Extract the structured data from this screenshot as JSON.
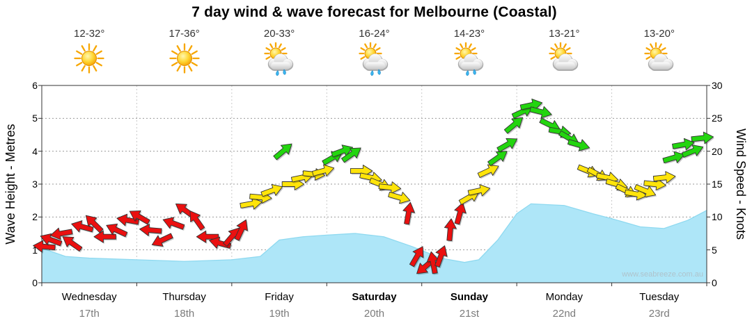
{
  "title": "7 day wind & wave forecast for Melbourne (Coastal)",
  "watermark": "www.seabreeze.com.au",
  "axes": {
    "left_title": "Wave Height - Metres",
    "right_title": "Wind Speed - Knots",
    "left_ticks": [
      "0",
      "1",
      "2",
      "3",
      "4",
      "5",
      "6"
    ],
    "right_ticks": [
      "0",
      "5",
      "10",
      "15",
      "20",
      "25",
      "30"
    ],
    "left_range": [
      0,
      6
    ],
    "right_range": [
      0,
      30
    ]
  },
  "days": [
    {
      "name": "Wednesday",
      "date": "17th",
      "temp": "12-32°",
      "icon": "sun",
      "bold": false
    },
    {
      "name": "Thursday",
      "date": "18th",
      "temp": "17-36°",
      "icon": "sun",
      "bold": false
    },
    {
      "name": "Friday",
      "date": "19th",
      "temp": "20-33°",
      "icon": "sun-cloud-rain",
      "bold": false
    },
    {
      "name": "Saturday",
      "date": "20th",
      "temp": "16-24°",
      "icon": "sun-cloud-rain",
      "bold": true
    },
    {
      "name": "Sunday",
      "date": "21st",
      "temp": "14-23°",
      "icon": "sun-cloud-rain",
      "bold": true
    },
    {
      "name": "Monday",
      "date": "22nd",
      "temp": "13-21°",
      "icon": "sun-cloud",
      "bold": false
    },
    {
      "name": "Tuesday",
      "date": "23rd",
      "temp": "13-20°",
      "icon": "sun-cloud",
      "bold": false
    }
  ],
  "colors": {
    "wave_fill": "#AEE6F8",
    "wave_line": "#8ED9F0",
    "arrow_red": "#EA1010",
    "arrow_yellow": "#FFE40A",
    "arrow_green": "#23D50F",
    "arrow_outline": "#333333",
    "grid": "#999999",
    "day_grid": "#c9c9c9",
    "frame": "#333333",
    "temp_text": "#333333",
    "date_text": "#7B7B7B",
    "watermark": "#AFC3CC"
  },
  "chart_data": [
    {
      "type": "area",
      "name": "wave_height",
      "title": "Wave height (metres)",
      "x_unit": "days_from_wednesday_00h",
      "xlim": [
        0,
        7
      ],
      "ylim": [
        0,
        6
      ],
      "ylabel": "Wave Height - Metres",
      "x": [
        0,
        0.25,
        0.5,
        1.0,
        1.5,
        2.0,
        2.3,
        2.5,
        2.75,
        3.0,
        3.3,
        3.6,
        3.9,
        4.2,
        4.45,
        4.6,
        4.8,
        5.0,
        5.15,
        5.5,
        5.8,
        6.0,
        6.3,
        6.55,
        6.8,
        7.0
      ],
      "y": [
        1.05,
        0.8,
        0.75,
        0.7,
        0.65,
        0.7,
        0.8,
        1.3,
        1.4,
        1.45,
        1.5,
        1.4,
        1.1,
        0.75,
        0.62,
        0.7,
        1.3,
        2.1,
        2.4,
        2.35,
        2.1,
        1.95,
        1.7,
        1.65,
        1.9,
        2.2
      ]
    },
    {
      "type": "scatter",
      "name": "wind_arrows",
      "title": "Wind speed (knots) with direction arrows",
      "marker": "arrow",
      "x_unit": "days_from_wednesday_00h",
      "xlim": [
        0,
        7
      ],
      "ylim": [
        0,
        30
      ],
      "ylabel": "Wind Speed - Knots",
      "color_rule": {
        "red": "<12kt",
        "yellow": "12-17.9kt",
        "green": ">=18kt"
      },
      "points": [
        [
          0.03,
          5.5,
          185
        ],
        [
          0.1,
          6.5,
          200
        ],
        [
          0.21,
          7.5,
          170
        ],
        [
          0.32,
          6,
          215
        ],
        [
          0.43,
          8.5,
          195
        ],
        [
          0.55,
          9,
          225
        ],
        [
          0.67,
          7,
          180
        ],
        [
          0.79,
          8,
          205
        ],
        [
          0.91,
          9.5,
          190
        ],
        [
          1.03,
          10,
          210
        ],
        [
          1.15,
          8,
          185
        ],
        [
          1.27,
          6.5,
          155
        ],
        [
          1.39,
          9,
          200
        ],
        [
          1.51,
          11,
          215
        ],
        [
          1.63,
          9.5,
          235
        ],
        [
          1.75,
          7,
          180
        ],
        [
          1.88,
          6,
          195
        ],
        [
          2.0,
          7,
          -50
        ],
        [
          2.1,
          8,
          -65
        ],
        [
          2.2,
          12,
          -10
        ],
        [
          2.3,
          13,
          5
        ],
        [
          2.42,
          14,
          -20
        ],
        [
          2.54,
          20,
          -40
        ],
        [
          2.64,
          15,
          0
        ],
        [
          2.74,
          16,
          -12
        ],
        [
          2.86,
          16.5,
          6
        ],
        [
          2.96,
          17,
          -15
        ],
        [
          3.06,
          19,
          -30
        ],
        [
          3.16,
          20,
          -20
        ],
        [
          3.26,
          19.5,
          -35
        ],
        [
          3.36,
          17,
          0
        ],
        [
          3.46,
          16,
          12
        ],
        [
          3.56,
          15,
          22
        ],
        [
          3.66,
          14.5,
          6
        ],
        [
          3.76,
          13,
          16
        ],
        [
          3.86,
          10.5,
          -80
        ],
        [
          3.95,
          4,
          -60
        ],
        [
          4.04,
          2.5,
          140
        ],
        [
          4.12,
          3,
          -100
        ],
        [
          4.2,
          4,
          -70
        ],
        [
          4.3,
          8,
          -85
        ],
        [
          4.4,
          10.5,
          -75
        ],
        [
          4.5,
          13,
          -30
        ],
        [
          4.6,
          14,
          -12
        ],
        [
          4.7,
          17,
          -25
        ],
        [
          4.8,
          19,
          -35
        ],
        [
          4.9,
          21,
          -30
        ],
        [
          4.97,
          24,
          -40
        ],
        [
          5.06,
          26,
          -25
        ],
        [
          5.15,
          27,
          -12
        ],
        [
          5.25,
          26,
          14
        ],
        [
          5.35,
          24,
          26
        ],
        [
          5.45,
          23,
          10
        ],
        [
          5.55,
          22,
          30
        ],
        [
          5.65,
          21,
          16
        ],
        [
          5.75,
          17,
          22
        ],
        [
          5.85,
          16.5,
          28
        ],
        [
          5.95,
          16,
          12
        ],
        [
          6.05,
          15,
          16
        ],
        [
          6.15,
          14,
          26
        ],
        [
          6.25,
          13.5,
          10
        ],
        [
          6.35,
          14,
          22
        ],
        [
          6.45,
          15,
          6
        ],
        [
          6.55,
          16,
          -6
        ],
        [
          6.65,
          19,
          -16
        ],
        [
          6.75,
          21,
          -10
        ],
        [
          6.85,
          20,
          -22
        ],
        [
          6.95,
          22,
          -6
        ]
      ]
    }
  ]
}
